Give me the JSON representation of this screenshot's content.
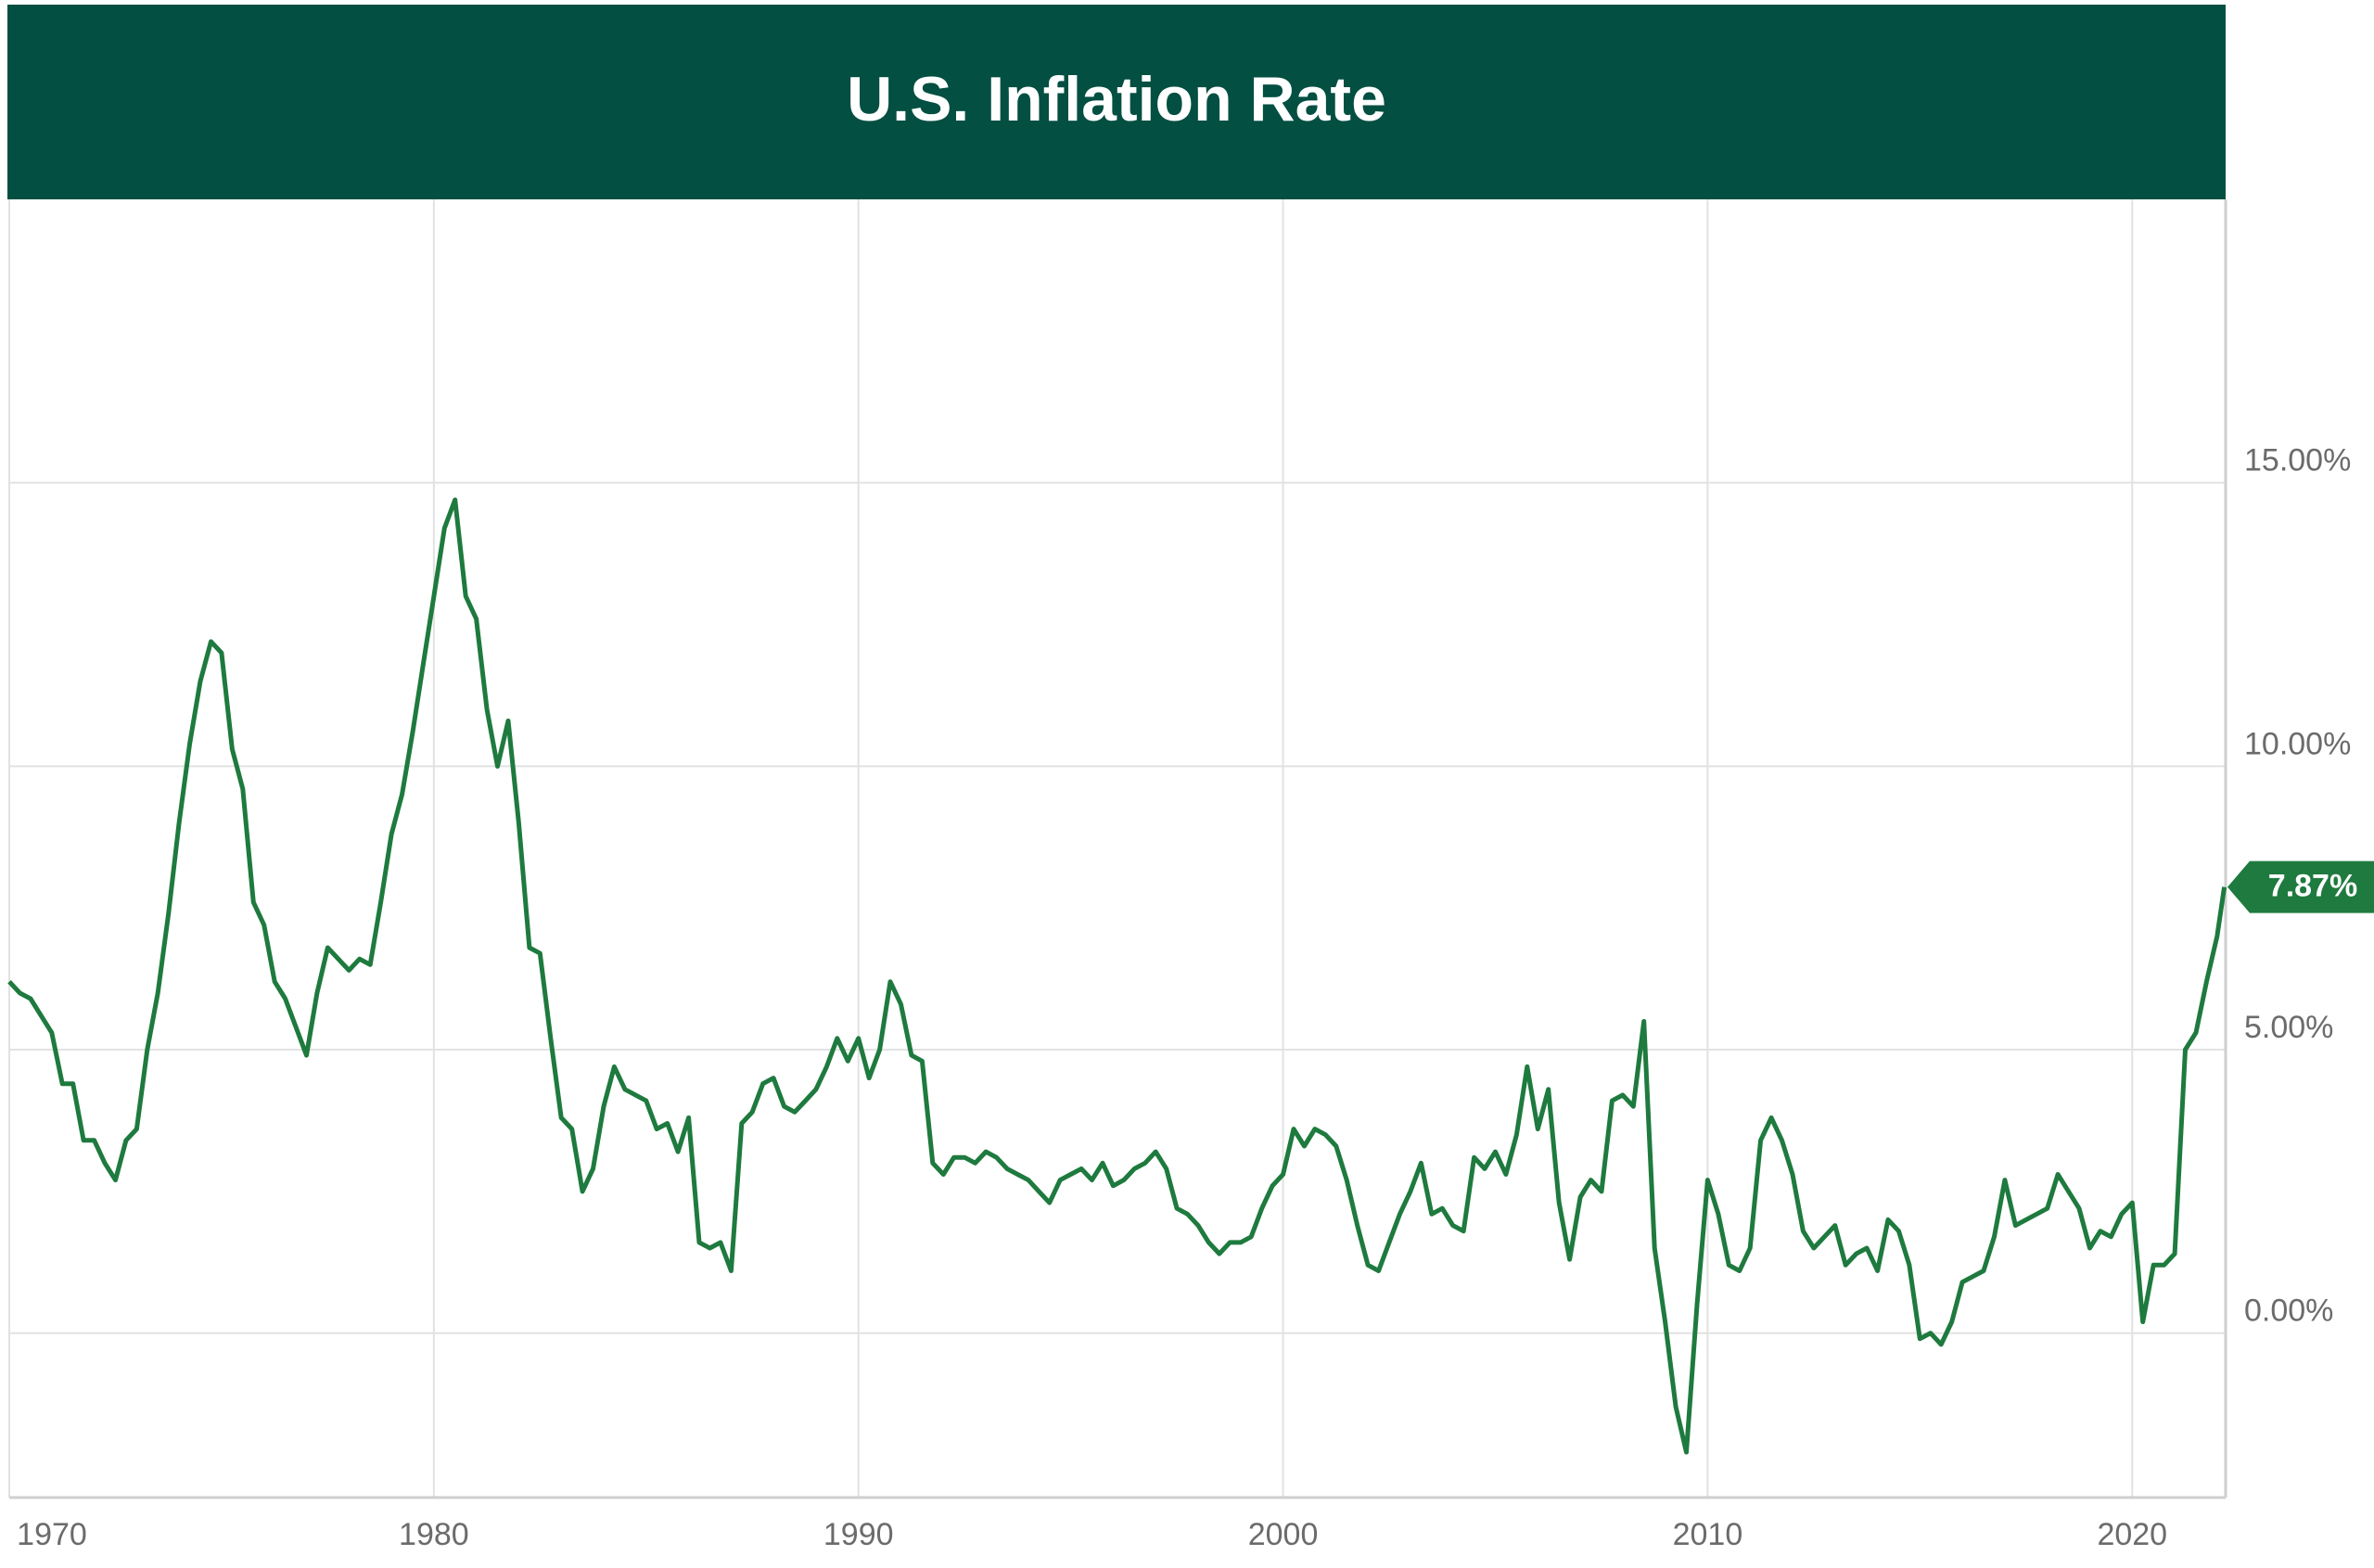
{
  "chart_data": {
    "type": "line",
    "title": "U.S. Inflation Rate",
    "x": [
      1970,
      1970.25,
      1970.5,
      1970.75,
      1971,
      1971.25,
      1971.5,
      1971.75,
      1972,
      1972.25,
      1972.5,
      1972.75,
      1973,
      1973.25,
      1973.5,
      1973.75,
      1974,
      1974.25,
      1974.5,
      1974.75,
      1975,
      1975.25,
      1975.5,
      1975.75,
      1976,
      1976.25,
      1976.5,
      1976.75,
      1977,
      1977.25,
      1977.5,
      1977.75,
      1978,
      1978.25,
      1978.5,
      1978.75,
      1979,
      1979.25,
      1979.5,
      1979.75,
      1980,
      1980.25,
      1980.5,
      1980.75,
      1981,
      1981.25,
      1981.5,
      1981.75,
      1982,
      1982.25,
      1982.5,
      1982.75,
      1983,
      1983.25,
      1983.5,
      1983.75,
      1984,
      1984.25,
      1984.5,
      1984.75,
      1985,
      1985.25,
      1985.5,
      1985.75,
      1986,
      1986.25,
      1986.5,
      1986.75,
      1987,
      1987.25,
      1987.5,
      1987.75,
      1988,
      1988.25,
      1988.5,
      1988.75,
      1989,
      1989.25,
      1989.5,
      1989.75,
      1990,
      1990.25,
      1990.5,
      1990.75,
      1991,
      1991.25,
      1991.5,
      1991.75,
      1992,
      1992.25,
      1992.5,
      1992.75,
      1993,
      1993.25,
      1993.5,
      1993.75,
      1994,
      1994.25,
      1994.5,
      1994.75,
      1995,
      1995.25,
      1995.5,
      1995.75,
      1996,
      1996.25,
      1996.5,
      1996.75,
      1997,
      1997.25,
      1997.5,
      1997.75,
      1998,
      1998.25,
      1998.5,
      1998.75,
      1999,
      1999.25,
      1999.5,
      1999.75,
      2000,
      2000.25,
      2000.5,
      2000.75,
      2001,
      2001.25,
      2001.5,
      2001.75,
      2002,
      2002.25,
      2002.5,
      2002.75,
      2003,
      2003.25,
      2003.5,
      2003.75,
      2004,
      2004.25,
      2004.5,
      2004.75,
      2005,
      2005.25,
      2005.5,
      2005.75,
      2006,
      2006.25,
      2006.5,
      2006.75,
      2007,
      2007.25,
      2007.5,
      2007.75,
      2008,
      2008.25,
      2008.5,
      2008.75,
      2009,
      2009.25,
      2009.5,
      2009.75,
      2010,
      2010.25,
      2010.5,
      2010.75,
      2011,
      2011.25,
      2011.5,
      2011.75,
      2012,
      2012.25,
      2012.5,
      2012.75,
      2013,
      2013.25,
      2013.5,
      2013.75,
      2014,
      2014.25,
      2014.5,
      2014.75,
      2015,
      2015.25,
      2015.5,
      2015.75,
      2016,
      2016.25,
      2016.5,
      2016.75,
      2017,
      2017.25,
      2017.5,
      2017.75,
      2018,
      2018.25,
      2018.5,
      2018.75,
      2019,
      2019.25,
      2019.5,
      2019.75,
      2020,
      2020.25,
      2020.5,
      2020.75,
      2021,
      2021.25,
      2021.5,
      2021.75,
      2022,
      2022.17
    ],
    "values": [
      6.2,
      6.0,
      5.9,
      5.6,
      5.3,
      4.4,
      4.4,
      3.4,
      3.4,
      3.0,
      2.7,
      3.4,
      3.6,
      5.0,
      6.0,
      7.4,
      9.0,
      10.4,
      11.5,
      12.2,
      12.0,
      10.3,
      9.6,
      7.6,
      7.2,
      6.2,
      5.9,
      5.4,
      4.9,
      6.0,
      6.8,
      6.6,
      6.4,
      6.6,
      6.5,
      7.6,
      8.8,
      9.5,
      10.6,
      11.8,
      13.0,
      14.2,
      14.7,
      13.0,
      12.6,
      11.0,
      10.0,
      10.8,
      9.0,
      6.8,
      6.7,
      5.2,
      3.8,
      3.6,
      2.5,
      2.9,
      4.0,
      4.7,
      4.3,
      4.2,
      4.1,
      3.6,
      3.7,
      3.2,
      3.8,
      1.6,
      1.5,
      1.6,
      1.1,
      3.7,
      3.9,
      4.4,
      4.5,
      4.0,
      3.9,
      4.1,
      4.3,
      4.7,
      5.2,
      4.8,
      5.2,
      4.5,
      5.0,
      6.2,
      5.8,
      4.9,
      4.8,
      3.0,
      2.8,
      3.1,
      3.1,
      3.0,
      3.2,
      3.1,
      2.9,
      2.8,
      2.7,
      2.5,
      2.3,
      2.7,
      2.8,
      2.9,
      2.7,
      3.0,
      2.6,
      2.7,
      2.9,
      3.0,
      3.2,
      2.9,
      2.2,
      2.1,
      1.9,
      1.6,
      1.4,
      1.6,
      1.6,
      1.7,
      2.2,
      2.6,
      2.8,
      3.6,
      3.3,
      3.6,
      3.5,
      3.3,
      2.7,
      1.9,
      1.2,
      1.1,
      1.6,
      2.1,
      2.5,
      3.0,
      2.1,
      2.2,
      1.9,
      1.8,
      3.1,
      2.9,
      3.2,
      2.8,
      3.5,
      4.7,
      3.6,
      4.3,
      2.3,
      1.3,
      2.4,
      2.7,
      2.5,
      4.1,
      4.2,
      4.0,
      5.5,
      1.5,
      0.2,
      -1.3,
      -2.1,
      0.5,
      2.7,
      2.1,
      1.2,
      1.1,
      1.5,
      3.4,
      3.8,
      3.4,
      2.8,
      1.8,
      1.5,
      1.7,
      1.9,
      1.2,
      1.4,
      1.5,
      1.1,
      2.0,
      1.8,
      1.2,
      -0.1,
      0.0,
      -0.2,
      0.2,
      0.9,
      1.0,
      1.1,
      1.7,
      2.7,
      1.9,
      2.0,
      2.1,
      2.2,
      2.8,
      2.5,
      2.2,
      1.5,
      1.8,
      1.7,
      2.1,
      2.3,
      0.2,
      1.2,
      1.2,
      1.4,
      5.0,
      5.3,
      6.2,
      7.0,
      7.87
    ],
    "last_value_label": "7.87%",
    "color": "#1e7a3e",
    "xlim": [
      1970,
      2022.2
    ],
    "xticks": [
      1970,
      1980,
      1990,
      2000,
      2010,
      2020
    ],
    "ylim": [
      -2.9,
      20
    ],
    "yticks": [
      {
        "value": 0,
        "label": "0.00%"
      },
      {
        "value": 5,
        "label": "5.00%"
      },
      {
        "value": 10,
        "label": "10.00%"
      },
      {
        "value": 15,
        "label": "15.00%"
      }
    ],
    "grid": true
  }
}
